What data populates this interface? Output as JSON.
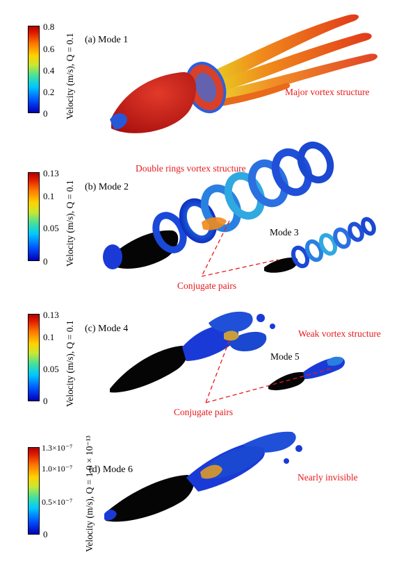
{
  "panels": [
    {
      "label": "(a) Mode 1",
      "colorbar": {
        "title": "Velocity (m/s), Q = 0.1",
        "ticks": [
          "0.8",
          "0.6",
          "0.4",
          "0.2",
          "0"
        ]
      },
      "annotations": [
        "Major vortex structure"
      ]
    },
    {
      "label": "(b) Mode 2",
      "colorbar": {
        "title": "Velocity (m/s), Q = 0.1",
        "ticks": [
          "0.13",
          "0.1",
          "0.05",
          "0"
        ]
      },
      "annotations": [
        "Double rings vortex structure",
        "Mode 3",
        "Conjugate pairs"
      ]
    },
    {
      "label": "(c) Mode 4",
      "colorbar": {
        "title": "Velocity (m/s), Q = 0.1",
        "ticks": [
          "0.13",
          "0.1",
          "0.05",
          "0"
        ]
      },
      "annotations": [
        "Weak vortex structure",
        "Mode 5",
        "Conjugate pairs"
      ]
    },
    {
      "label": "(d) Mode 6",
      "colorbar": {
        "title": "Velocity (m/s), Q = 1.0 × 10⁻¹³",
        "ticks": [
          "1.3×10⁻⁷",
          "1.0×10⁻⁷",
          "0.5×10⁻⁷",
          "0"
        ]
      },
      "annotations": [
        "Nearly invisible"
      ]
    }
  ],
  "colors": {
    "annotation_red": "#e8191b",
    "body_red": "#c8161a",
    "body_black": "#050505",
    "vortex_blue": "#1a3ad8"
  }
}
